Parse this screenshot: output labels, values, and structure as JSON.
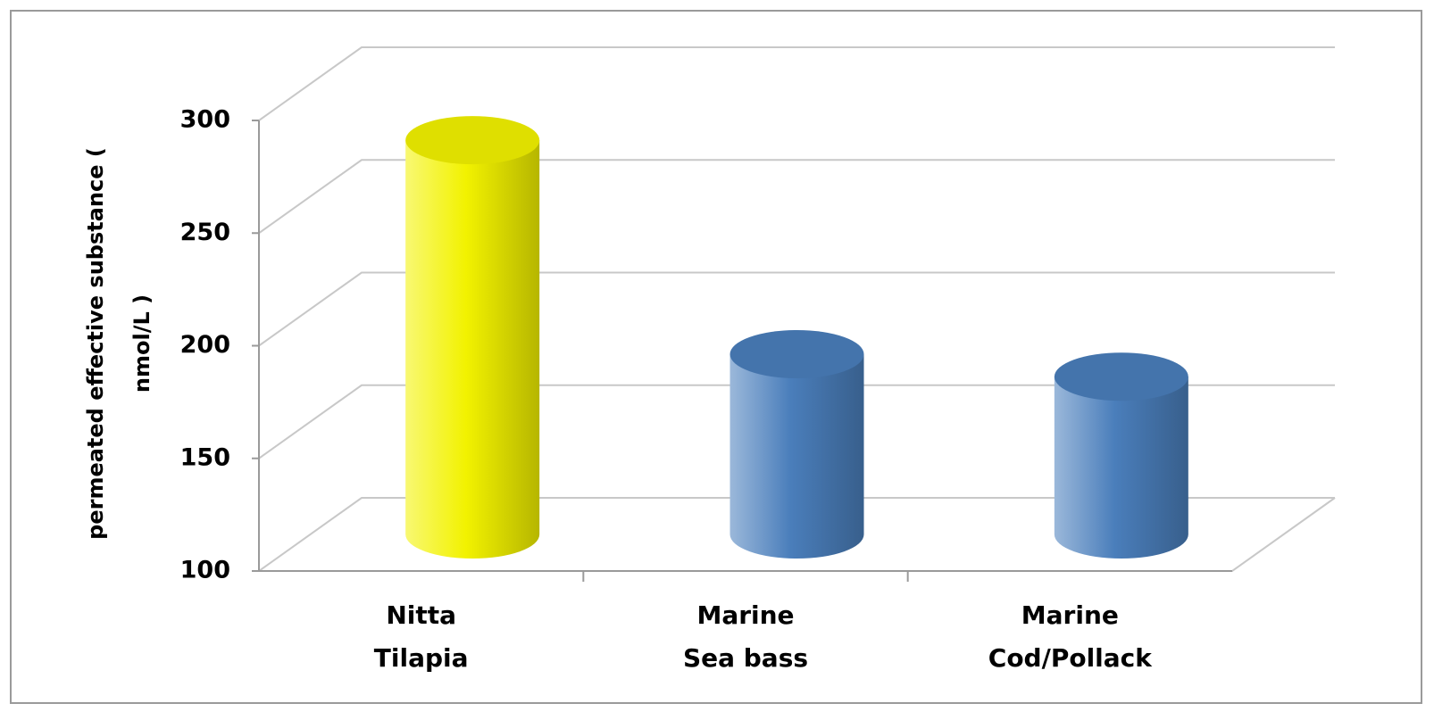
{
  "chart_data": {
    "type": "bar3d",
    "y_label": [
      "permeated effective substance (",
      "nmol/L )"
    ],
    "categories": [
      [
        "Nitta",
        "Tilapia"
      ],
      [
        "Marine",
        "Sea bass"
      ],
      [
        "Marine",
        "Cod/Pollack"
      ]
    ],
    "values": [
      275,
      180,
      170
    ],
    "colors": [
      "#f2f200",
      "#4a7ebb",
      "#4a7ebb"
    ],
    "ylim": [
      100,
      300
    ],
    "yticks": [
      100,
      150,
      200,
      250,
      300
    ],
    "grid": true
  }
}
